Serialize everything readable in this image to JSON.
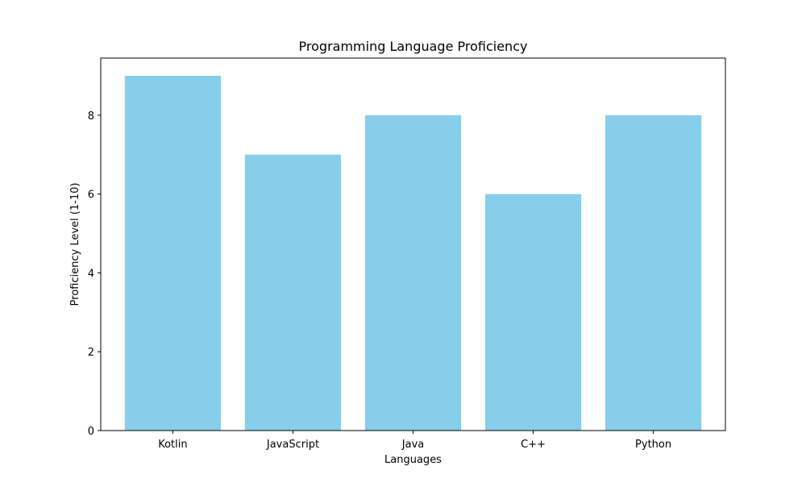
{
  "chart_data": {
    "type": "bar",
    "title": "Programming Language Proficiency",
    "xlabel": "Languages",
    "ylabel": "Proficiency Level (1-10)",
    "categories": [
      "Kotlin",
      "JavaScript",
      "Java",
      "C++",
      "Python"
    ],
    "values": [
      9,
      7,
      8,
      6,
      8
    ],
    "ylim": [
      0,
      9.45
    ],
    "yticks": [
      0,
      2,
      4,
      6,
      8
    ],
    "bar_color": "#87ceeb",
    "grid": false,
    "legend": "none"
  }
}
